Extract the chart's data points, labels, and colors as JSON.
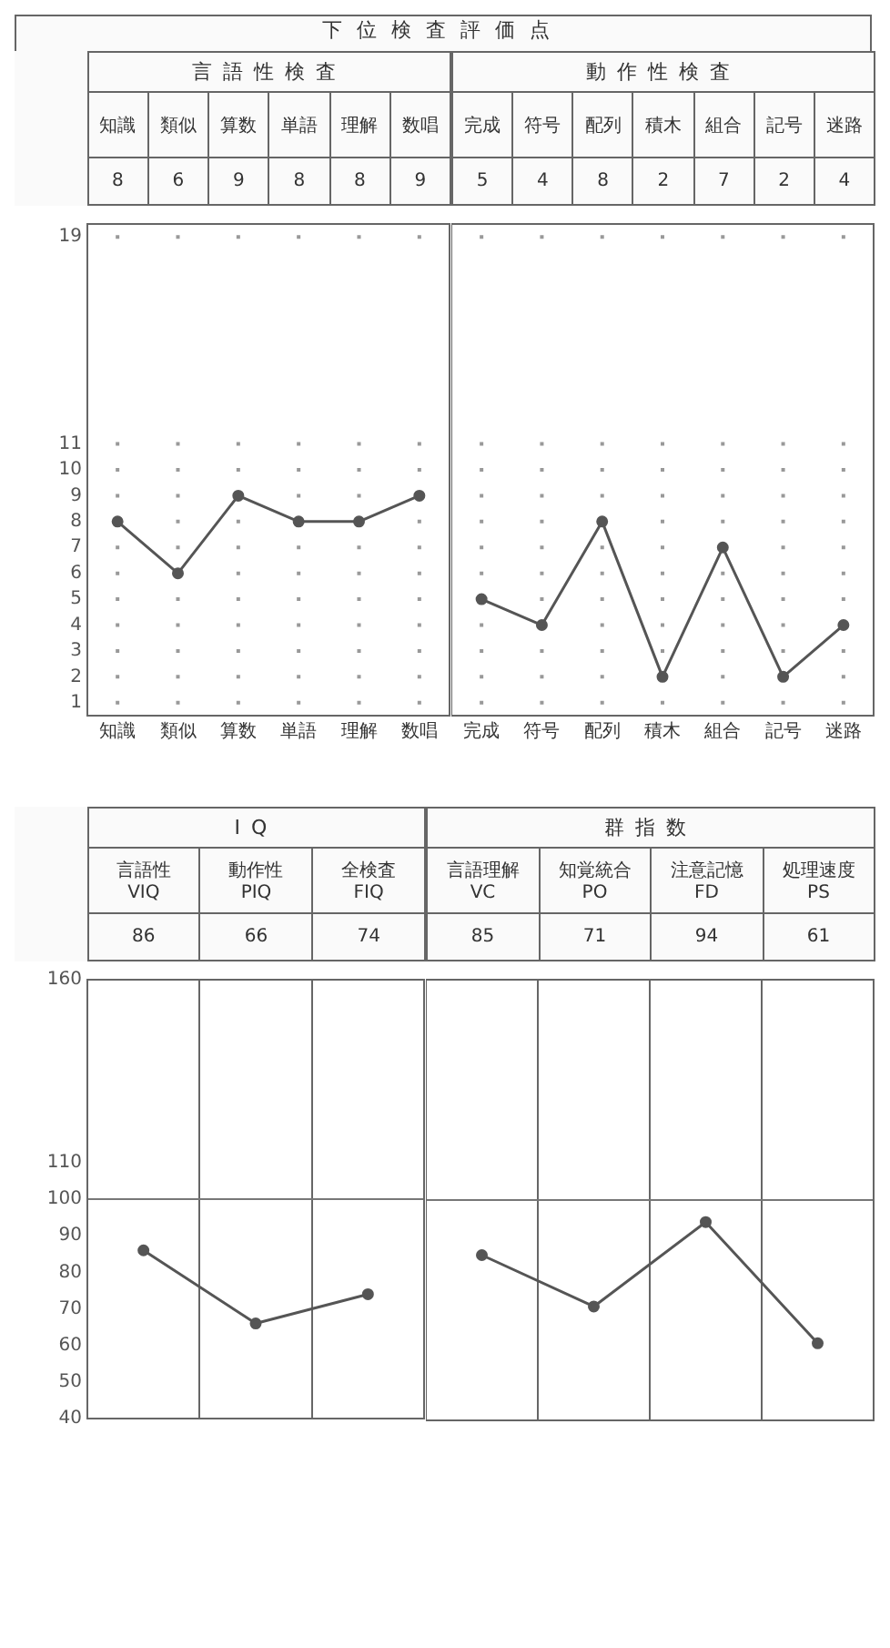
{
  "chart_data": [
    {
      "type": "line",
      "title": "下位検査評価点",
      "subtitle": "言語性検査",
      "categories": [
        "知識",
        "類似",
        "算数",
        "単語",
        "理解",
        "数唱"
      ],
      "values": [
        8,
        6,
        9,
        8,
        8,
        9
      ],
      "color": "#555555",
      "data_labels": true,
      "ylim": [
        0.5,
        19.5
      ],
      "yticks": [
        1,
        2,
        3,
        4,
        5,
        6,
        7,
        8,
        9,
        10,
        11,
        19
      ],
      "grid": true,
      "marker": "circle"
    },
    {
      "type": "line",
      "subtitle": "動作性検査",
      "categories": [
        "完成",
        "符号",
        "配列",
        "積木",
        "組合",
        "記号",
        "迷路"
      ],
      "values": [
        5,
        4,
        8,
        2,
        7,
        2,
        4
      ],
      "color": "#555555",
      "data_labels": true,
      "ylim": [
        0.5,
        19.5
      ],
      "yticks": [
        1,
        2,
        3,
        4,
        5,
        6,
        7,
        8,
        9,
        10,
        11,
        19
      ],
      "grid": true,
      "marker": "circle",
      "tick_labels": "x"
    },
    {
      "type": "line",
      "subtitle": "IQ",
      "categories": [
        "言語性 VIQ",
        "動作性 PIQ",
        "全検査 FIQ"
      ],
      "values": [
        86,
        66,
        74
      ],
      "color": "#555555",
      "data_labels": true,
      "ylim": [
        40,
        160
      ],
      "yticks": [
        40,
        50,
        60,
        70,
        80,
        90,
        100,
        110,
        160
      ],
      "grid": "x",
      "marker": "circle",
      "tick_labels": "y",
      "ref_lines": [
        {
          "axis": "y",
          "value": 100,
          "color": "#777777"
        }
      ]
    },
    {
      "type": "line",
      "subtitle": "群指数",
      "categories": [
        "言語理解 VC",
        "知覚統合 PO",
        "注意記憶 FD",
        "処理速度 PS"
      ],
      "values": [
        85,
        71,
        94,
        61
      ],
      "color": "#555555",
      "data_labels": true,
      "ylim": [
        40,
        160
      ],
      "yticks": [
        40,
        50,
        60,
        70,
        80,
        90,
        100,
        110,
        160
      ],
      "grid": "x",
      "marker": "circle",
      "tick_labels": false,
      "ref_lines": [
        {
          "axis": "y",
          "value": 100,
          "color": "#777777"
        }
      ]
    }
  ]
}
